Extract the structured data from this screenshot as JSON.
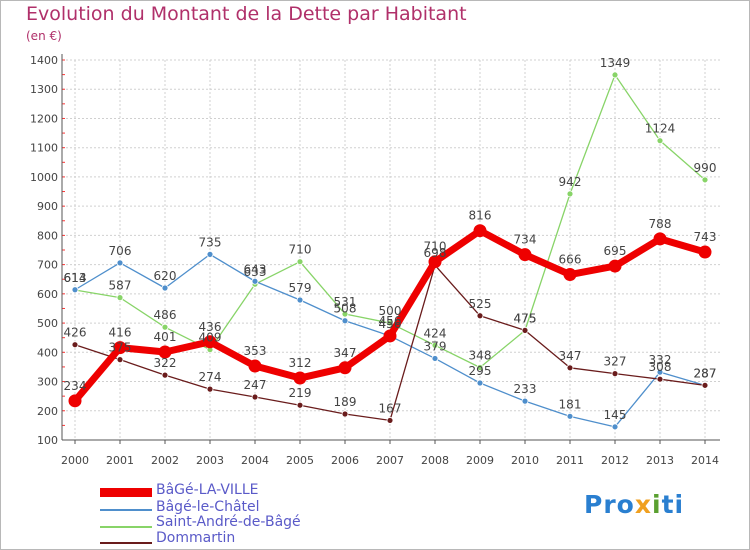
{
  "title": "Evolution du Montant de la Dette par Habitant",
  "unit_label": "(en €)",
  "logo": {
    "text": "Proxiti",
    "letters": [
      "P",
      "r",
      "o",
      "x",
      "i",
      "t",
      "i"
    ],
    "colors": [
      "#2a7fd0",
      "#2a7fd0",
      "#2a7fd0",
      "#f0a020",
      "#5aa030",
      "#2a7fd0",
      "#2a7fd0"
    ]
  },
  "chart_data": {
    "type": "line",
    "x": [
      "2000",
      "2001",
      "2002",
      "2003",
      "2004",
      "2005",
      "2006",
      "2007",
      "2008",
      "2009",
      "2010",
      "2011",
      "2012",
      "2013",
      "2014"
    ],
    "ylim": [
      100,
      1400
    ],
    "yticks": [
      100,
      200,
      300,
      400,
      500,
      600,
      700,
      800,
      900,
      1000,
      1100,
      1200,
      1300,
      1400
    ],
    "grid": true,
    "legend_position": "bottom-left",
    "series": [
      {
        "name": "Saint-André-de-Bâgé",
        "color": "#88d468",
        "width": 1.3,
        "marker": 3,
        "values": [
          613,
          587,
          486,
          409,
          633,
          710,
          531,
          500,
          424,
          348,
          475,
          942,
          1349,
          1124,
          990
        ]
      },
      {
        "name": "Bâgé-le-Châtel",
        "color": "#4f8fcc",
        "width": 1.3,
        "marker": 3,
        "values": [
          614,
          706,
          620,
          735,
          643,
          579,
          508,
          456,
          379,
          295,
          233,
          181,
          145,
          332,
          287
        ]
      },
      {
        "name": "Dommartin",
        "color": "#6a1c1c",
        "width": 1.3,
        "marker": 3,
        "values": [
          426,
          375,
          322,
          274,
          247,
          219,
          189,
          167,
          698,
          525,
          475,
          347,
          327,
          308,
          287
        ]
      },
      {
        "name": "BâGé-LA-VILLE",
        "color": "#ee0000",
        "width": 7,
        "marker": 6.5,
        "values": [
          234,
          416,
          401,
          436,
          353,
          312,
          347,
          456,
          710,
          816,
          734,
          666,
          695,
          788,
          743
        ]
      }
    ]
  }
}
